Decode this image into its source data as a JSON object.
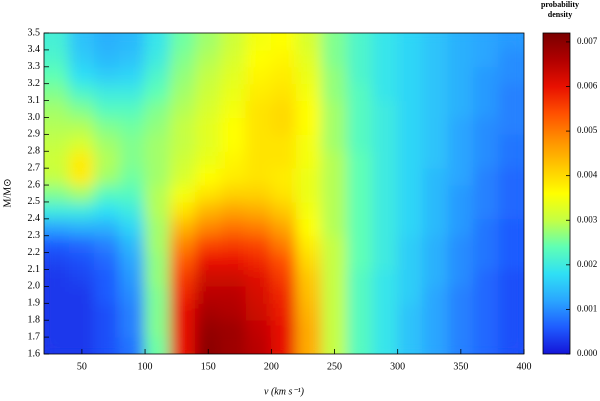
{
  "chart_data": {
    "type": "heatmap",
    "x_label": "v (km s⁻¹)",
    "y_label": "M/M⊙",
    "colorbar_label": "probability density",
    "xlim": [
      20,
      400
    ],
    "ylim": [
      1.6,
      3.5
    ],
    "zlim": [
      0,
      0.0072
    ],
    "xticks": [
      50,
      100,
      150,
      200,
      250,
      300,
      350,
      400
    ],
    "yticks": [
      1.6,
      1.7,
      1.8,
      1.9,
      {
        "value": 2,
        "label": "2.0"
      },
      2.1,
      2.2,
      2.3,
      2.4,
      2.5,
      2.6,
      2.7,
      2.8,
      2.9,
      {
        "value": 3,
        "label": "3.0"
      },
      3.1,
      3.2,
      3.3,
      3.4,
      3.5
    ],
    "zticks": [
      {
        "value": 0,
        "label": "0.000"
      },
      0.001,
      0.002,
      0.003,
      0.004,
      0.005,
      0.006,
      0.007
    ],
    "colors": [
      "#1414d8",
      "#1f5cff",
      "#2aa6ff",
      "#2fe0f5",
      "#5fffb5",
      "#c4ff44",
      "#ffff00",
      "#ffc800",
      "#ff9000",
      "#ff5000",
      "#e81000",
      "#b00000",
      "#7a0000"
    ],
    "x": [
      30,
      50,
      70,
      90,
      110,
      130,
      150,
      170,
      190,
      210,
      230,
      250,
      270,
      290,
      310,
      330,
      350,
      370,
      390
    ],
    "y": [
      1.65,
      1.75,
      1.85,
      1.95,
      2.05,
      2.15,
      2.25,
      2.35,
      2.45,
      2.55,
      2.65,
      2.75,
      2.85,
      2.95,
      3.05,
      3.15,
      3.25,
      3.35,
      3.45
    ],
    "z": [
      [
        0.0003,
        0.0003,
        0.0005,
        0.0008,
        0.0025,
        0.006,
        0.007,
        0.0068,
        0.0065,
        0.006,
        0.0045,
        0.003,
        0.0023,
        0.0019,
        0.0015,
        0.0012,
        0.0009,
        0.0007,
        0.0005
      ],
      [
        0.0003,
        0.0003,
        0.0005,
        0.0009,
        0.0026,
        0.006,
        0.0069,
        0.0068,
        0.0064,
        0.006,
        0.0045,
        0.003,
        0.0023,
        0.0019,
        0.0015,
        0.0012,
        0.0009,
        0.0007,
        0.0005
      ],
      [
        0.0003,
        0.0003,
        0.0005,
        0.0009,
        0.0026,
        0.006,
        0.0067,
        0.0066,
        0.0063,
        0.0059,
        0.0044,
        0.003,
        0.0023,
        0.0019,
        0.0015,
        0.0012,
        0.0009,
        0.0007,
        0.0005
      ],
      [
        0.0003,
        0.0003,
        0.0006,
        0.001,
        0.0026,
        0.0058,
        0.0065,
        0.0065,
        0.0062,
        0.0058,
        0.0043,
        0.003,
        0.0023,
        0.0019,
        0.0016,
        0.0012,
        0.0009,
        0.0007,
        0.0005
      ],
      [
        0.0003,
        0.0004,
        0.0006,
        0.0011,
        0.0027,
        0.0056,
        0.0063,
        0.0063,
        0.0061,
        0.0056,
        0.0042,
        0.003,
        0.0023,
        0.0019,
        0.0016,
        0.0013,
        0.001,
        0.0007,
        0.0005
      ],
      [
        0.0004,
        0.0005,
        0.0007,
        0.0012,
        0.0027,
        0.0053,
        0.006,
        0.006,
        0.0058,
        0.0054,
        0.004,
        0.003,
        0.0024,
        0.002,
        0.0016,
        0.0013,
        0.001,
        0.0008,
        0.0006
      ],
      [
        0.0006,
        0.0007,
        0.0009,
        0.0014,
        0.0028,
        0.0049,
        0.0055,
        0.0056,
        0.0055,
        0.005,
        0.0038,
        0.003,
        0.0024,
        0.002,
        0.0016,
        0.0013,
        0.001,
        0.0008,
        0.0006
      ],
      [
        0.0012,
        0.0013,
        0.0013,
        0.0017,
        0.0028,
        0.0044,
        0.0049,
        0.0051,
        0.005,
        0.0046,
        0.0036,
        0.0029,
        0.0024,
        0.002,
        0.0017,
        0.0014,
        0.0011,
        0.0008,
        0.0006
      ],
      [
        0.002,
        0.002,
        0.0018,
        0.002,
        0.0029,
        0.0039,
        0.0044,
        0.0046,
        0.0045,
        0.0042,
        0.0035,
        0.0029,
        0.0024,
        0.002,
        0.0017,
        0.0014,
        0.0011,
        0.0009,
        0.0007
      ],
      [
        0.0026,
        0.0028,
        0.0023,
        0.0023,
        0.0029,
        0.0035,
        0.0039,
        0.0041,
        0.0041,
        0.0039,
        0.0034,
        0.0029,
        0.0024,
        0.002,
        0.0017,
        0.0014,
        0.0011,
        0.0009,
        0.0007
      ],
      [
        0.003,
        0.0038,
        0.0028,
        0.0025,
        0.0028,
        0.0032,
        0.0036,
        0.0038,
        0.0039,
        0.0038,
        0.0034,
        0.0029,
        0.0024,
        0.002,
        0.0017,
        0.0014,
        0.0012,
        0.0009,
        0.0007
      ],
      [
        0.0031,
        0.0038,
        0.0029,
        0.0026,
        0.0028,
        0.0031,
        0.0034,
        0.0037,
        0.0039,
        0.0039,
        0.0035,
        0.0029,
        0.0024,
        0.002,
        0.0017,
        0.0015,
        0.0012,
        0.001,
        0.0008
      ],
      [
        0.003,
        0.0032,
        0.0028,
        0.0026,
        0.0028,
        0.003,
        0.0033,
        0.0036,
        0.0039,
        0.0039,
        0.0035,
        0.0028,
        0.0023,
        0.002,
        0.0017,
        0.0015,
        0.0012,
        0.001,
        0.0008
      ],
      [
        0.0029,
        0.0029,
        0.0026,
        0.0025,
        0.0027,
        0.003,
        0.0033,
        0.0036,
        0.0039,
        0.004,
        0.0036,
        0.0028,
        0.0023,
        0.002,
        0.0017,
        0.0015,
        0.0012,
        0.001,
        0.0009
      ],
      [
        0.0028,
        0.0026,
        0.0023,
        0.0023,
        0.0026,
        0.0029,
        0.0032,
        0.0035,
        0.0039,
        0.004,
        0.0036,
        0.0028,
        0.0023,
        0.002,
        0.0017,
        0.0015,
        0.0013,
        0.0011,
        0.0009
      ],
      [
        0.0026,
        0.0022,
        0.002,
        0.002,
        0.0024,
        0.0028,
        0.0031,
        0.0034,
        0.0038,
        0.0039,
        0.0035,
        0.0027,
        0.0023,
        0.0019,
        0.0017,
        0.0015,
        0.0013,
        0.0011,
        0.0009
      ],
      [
        0.0024,
        0.0018,
        0.0016,
        0.0017,
        0.0022,
        0.0027,
        0.003,
        0.0033,
        0.0037,
        0.0038,
        0.0034,
        0.0027,
        0.0022,
        0.0019,
        0.0017,
        0.0015,
        0.0013,
        0.0011,
        0.001
      ],
      [
        0.0022,
        0.0016,
        0.0014,
        0.0015,
        0.002,
        0.0026,
        0.0029,
        0.0032,
        0.0036,
        0.0037,
        0.0033,
        0.0026,
        0.0022,
        0.0019,
        0.0017,
        0.0015,
        0.0013,
        0.0012,
        0.001
      ],
      [
        0.0021,
        0.0015,
        0.0013,
        0.0014,
        0.0019,
        0.0025,
        0.0028,
        0.0031,
        0.0035,
        0.0036,
        0.0032,
        0.0026,
        0.0022,
        0.0019,
        0.0017,
        0.0015,
        0.0013,
        0.0012,
        0.0011
      ]
    ]
  }
}
